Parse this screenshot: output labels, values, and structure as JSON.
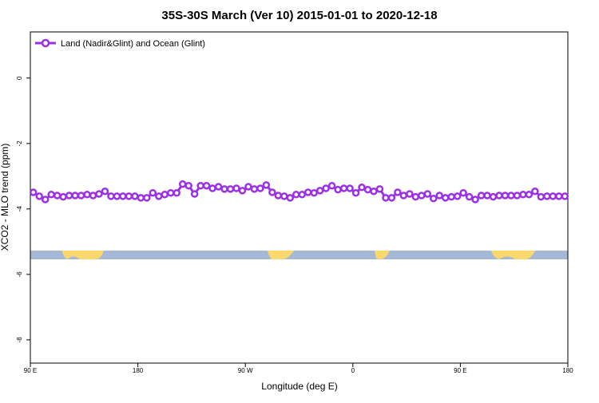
{
  "chart_data": {
    "type": "line",
    "title": "35S-30S March (Ver 10)   2015-01-01 to 2020-12-18",
    "xlabel": "Longitude (deg E)",
    "ylabel": "XCO2 - MLO trend (ppm)",
    "xlim": [
      90,
      540
    ],
    "ylim": [
      1.41,
      -8.71
    ],
    "xticks": [
      {
        "value": 90,
        "label": "90 E"
      },
      180,
      {
        "value": 270,
        "label": "90 W"
      },
      {
        "value": 360,
        "label": "0"
      },
      {
        "value": 450,
        "label": "90 E"
      },
      {
        "value": 540,
        "label": "180"
      }
    ],
    "yticks": [
      0,
      -2,
      -4,
      -6,
      -8
    ],
    "legend": "top-left",
    "x": [
      92.5,
      97.5,
      102.5,
      107.5,
      112.5,
      117.5,
      122.5,
      127.5,
      132.5,
      137.5,
      142.5,
      147.5,
      152.5,
      157.5,
      162.5,
      167.5,
      172.5,
      177.5,
      182.5,
      187.5,
      192.5,
      197.5,
      202.5,
      207.5,
      212.5,
      217.5,
      222.5,
      227.5,
      232.5,
      237.5,
      242.5,
      247.5,
      252.5,
      257.5,
      262.5,
      267.5,
      272.5,
      277.5,
      282.5,
      287.5,
      292.5,
      297.5,
      302.5,
      307.5,
      312.5,
      317.5,
      322.5,
      327.5,
      332.5,
      337.5,
      342.5,
      347.5,
      352.5,
      357.5,
      362.5,
      367.5,
      372.5,
      377.5,
      382.5,
      387.5,
      392.5,
      397.5,
      402.5,
      407.5,
      412.5,
      417.5,
      422.5,
      427.5,
      432.5,
      437.5,
      442.5,
      447.5,
      452.5,
      457.5,
      462.5,
      467.5,
      472.5,
      477.5,
      482.5,
      487.5,
      492.5,
      497.5,
      502.5,
      507.5,
      512.5,
      517.5,
      522.5,
      527.5,
      532.5,
      537.5
    ],
    "series": [
      {
        "name": "Land (Nadir&Glint) and Ocean (Glint)",
        "color": "#9b30e6",
        "values": [
          -3.49,
          -3.61,
          -3.71,
          -3.56,
          -3.59,
          -3.63,
          -3.59,
          -3.59,
          -3.59,
          -3.56,
          -3.59,
          -3.54,
          -3.46,
          -3.61,
          -3.61,
          -3.61,
          -3.61,
          -3.61,
          -3.66,
          -3.66,
          -3.51,
          -3.61,
          -3.56,
          -3.51,
          -3.51,
          -3.24,
          -3.29,
          -3.54,
          -3.29,
          -3.29,
          -3.37,
          -3.32,
          -3.39,
          -3.39,
          -3.37,
          -3.44,
          -3.32,
          -3.39,
          -3.37,
          -3.27,
          -3.49,
          -3.59,
          -3.61,
          -3.66,
          -3.56,
          -3.56,
          -3.49,
          -3.51,
          -3.44,
          -3.37,
          -3.29,
          -3.41,
          -3.37,
          -3.37,
          -3.51,
          -3.34,
          -3.41,
          -3.46,
          -3.39,
          -3.66,
          -3.66,
          -3.49,
          -3.59,
          -3.54,
          -3.63,
          -3.59,
          -3.54,
          -3.68,
          -3.59,
          -3.66,
          -3.63,
          -3.61,
          -3.51,
          -3.63,
          -3.71,
          -3.59,
          -3.59,
          -3.63,
          -3.59,
          -3.59,
          -3.59,
          -3.59,
          -3.56,
          -3.56,
          -3.46,
          -3.63,
          -3.61,
          -3.61,
          -3.61,
          -3.61
        ]
      }
    ]
  }
}
